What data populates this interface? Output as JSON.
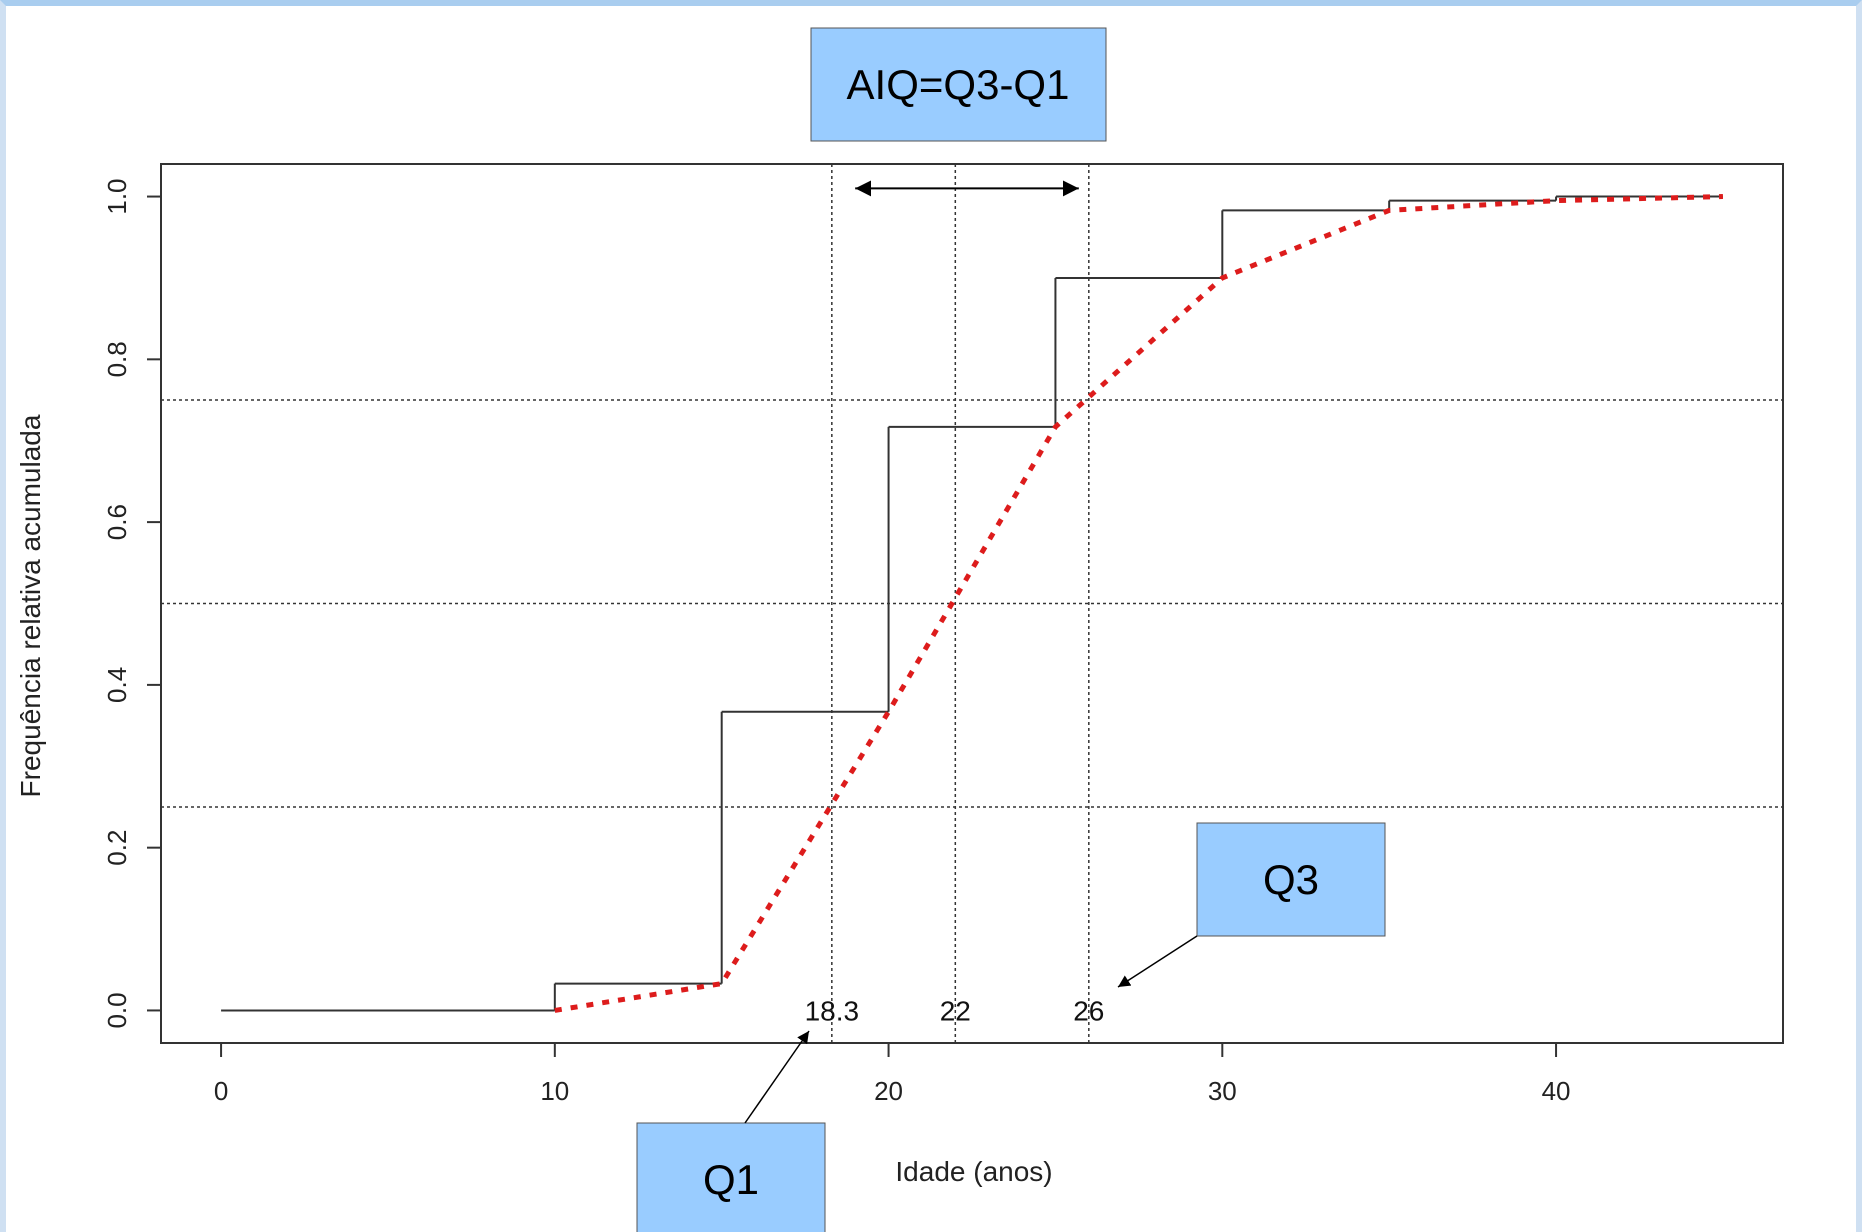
{
  "chart_data": {
    "type": "line",
    "xlabel": "Idade (anos)",
    "ylabel": "Frequência relativa acumulada",
    "xlim": [
      -1.8,
      46.8
    ],
    "ylim": [
      -0.04,
      1.04
    ],
    "x_ticks": [
      0,
      10,
      20,
      30,
      40
    ],
    "y_ticks": [
      0.0,
      0.2,
      0.4,
      0.6,
      0.8,
      1.0
    ],
    "step_series": {
      "x": [
        0,
        10,
        15,
        20,
        25,
        30,
        35,
        40,
        45
      ],
      "y": [
        0.0,
        0.033,
        0.367,
        0.717,
        0.9,
        0.983,
        0.995,
        1.0,
        1.0
      ]
    },
    "ogive_series": {
      "x": [
        10,
        15,
        20,
        25,
        30,
        35,
        40,
        45
      ],
      "y": [
        0.0,
        0.033,
        0.367,
        0.717,
        0.9,
        0.983,
        0.995,
        1.0
      ],
      "color": "#dd1c1c"
    },
    "quantile_lines_y": [
      0.25,
      0.5,
      0.75
    ],
    "quantiles": [
      {
        "x": 18.3,
        "label": "18.3"
      },
      {
        "x": 22,
        "label": "22"
      },
      {
        "x": 26,
        "label": "26"
      }
    ],
    "iqr_arrow": {
      "from": 19,
      "to": 25.7,
      "y": 1.01
    },
    "grid": false,
    "annotations": {
      "aiq": "AIQ=Q3-Q1",
      "q1": "Q1",
      "q3": "Q3",
      "box_color": "#99ccff"
    }
  }
}
